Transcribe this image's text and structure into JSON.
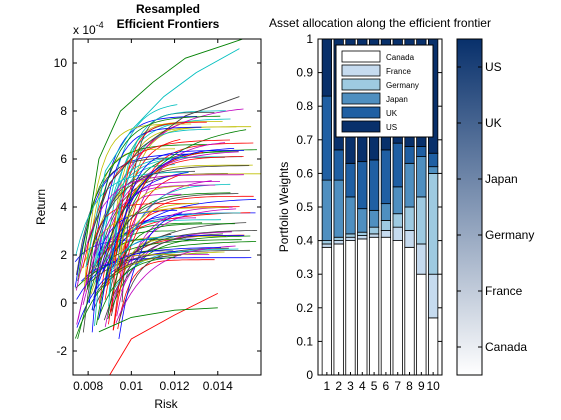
{
  "chart_data": [
    {
      "type": "line",
      "title_line1": "Resampled",
      "title_line2": "Efficient Frontiers",
      "xlabel": "Risk",
      "ylabel": "Return",
      "y_multiplier_base": "x 10",
      "y_multiplier_exp": "-4",
      "xlim": [
        0.0073,
        0.016
      ],
      "ylim": [
        -3,
        11
      ],
      "xticks": [
        0.008,
        0.01,
        0.012,
        0.014
      ],
      "xtick_labels": [
        "0.008",
        "0.01",
        "0.012",
        "0.014"
      ],
      "yticks": [
        -2,
        0,
        2,
        4,
        6,
        8,
        10
      ],
      "ytick_labels": [
        "-2",
        "0",
        "2",
        "4",
        "6",
        "8",
        "10"
      ],
      "series_colors": [
        "#0000ff",
        "#008000",
        "#ff0000",
        "#00bfbf",
        "#bf00bf",
        "#bfbf00",
        "#404040"
      ],
      "frontier_count": 100,
      "frontiers": [
        {
          "x": [
            0.0078,
            0.0085,
            0.0095,
            0.011,
            0.0125,
            0.0145,
            0.0158
          ],
          "y": [
            2.0,
            6.0,
            8.0,
            9.2,
            10.2,
            10.8,
            11.2
          ],
          "color": "#008000"
        },
        {
          "x": [
            0.0079,
            0.0088,
            0.01,
            0.0115,
            0.013,
            0.015
          ],
          "y": [
            1.5,
            5.5,
            7.2,
            8.6,
            9.6,
            10.6
          ],
          "color": "#00bfbf"
        },
        {
          "x": [
            0.008,
            0.009,
            0.0105,
            0.0125,
            0.015
          ],
          "y": [
            2.5,
            5.0,
            6.5,
            7.8,
            8.6
          ],
          "color": "#404040"
        },
        {
          "x": [
            0.009,
            0.01,
            0.012,
            0.014
          ],
          "y": [
            -3.0,
            -1.5,
            -0.5,
            0.4
          ],
          "color": "#ff0000"
        },
        {
          "x": [
            0.0085,
            0.01,
            0.012,
            0.014
          ],
          "y": [
            -1.2,
            -0.6,
            -0.3,
            -0.2
          ],
          "color": "#008000"
        }
      ]
    },
    {
      "type": "bar",
      "stacked": true,
      "title": "Asset allocation along the efficient frontier",
      "ylabel": "Portfolio Weights",
      "xlabel": "",
      "categories": [
        "1",
        "2",
        "3",
        "4",
        "5",
        "6",
        "7",
        "8",
        "9",
        "10"
      ],
      "ylim": [
        0,
        1
      ],
      "yticks": [
        0,
        0.1,
        0.2,
        0.3,
        0.4,
        0.5,
        0.6,
        0.7,
        0.8,
        0.9,
        1
      ],
      "ytick_labels": [
        "0",
        "0.1",
        "0.2",
        "0.3",
        "0.4",
        "0.5",
        "0.6",
        "0.7",
        "0.8",
        "0.9",
        "1"
      ],
      "legend_position": "top",
      "series": [
        {
          "name": "Canada",
          "color": "#ffffff",
          "values": [
            0.38,
            0.39,
            0.4,
            0.405,
            0.41,
            0.41,
            0.4,
            0.38,
            0.3,
            0.17
          ]
        },
        {
          "name": "France",
          "color": "#c6dbef",
          "values": [
            0.01,
            0.01,
            0.01,
            0.01,
            0.01,
            0.02,
            0.04,
            0.05,
            0.09,
            0.13
          ]
        },
        {
          "name": "Germany",
          "color": "#9ecae1",
          "values": [
            0.01,
            0.01,
            0.01,
            0.01,
            0.02,
            0.03,
            0.04,
            0.07,
            0.14,
            0.3
          ]
        },
        {
          "name": "Japan",
          "color": "#4f8fc0",
          "values": [
            0.18,
            0.17,
            0.11,
            0.07,
            0.05,
            0.05,
            0.08,
            0.13,
            0.12,
            0.02
          ]
        },
        {
          "name": "UK",
          "color": "#1f5fa3",
          "values": [
            0.25,
            0.09,
            0.1,
            0.14,
            0.15,
            0.16,
            0.13,
            0.05,
            0.03,
            0.04
          ]
        },
        {
          "name": "US",
          "color": "#08306b",
          "values": [
            0.17,
            0.33,
            0.37,
            0.365,
            0.36,
            0.33,
            0.31,
            0.32,
            0.32,
            0.34
          ]
        }
      ]
    },
    {
      "type": "heatmap",
      "role": "colorbar",
      "labels": [
        "Canada",
        "France",
        "Germany",
        "Japan",
        "UK",
        "US"
      ],
      "color_low": "#ffffff",
      "color_high": "#08306b"
    }
  ]
}
